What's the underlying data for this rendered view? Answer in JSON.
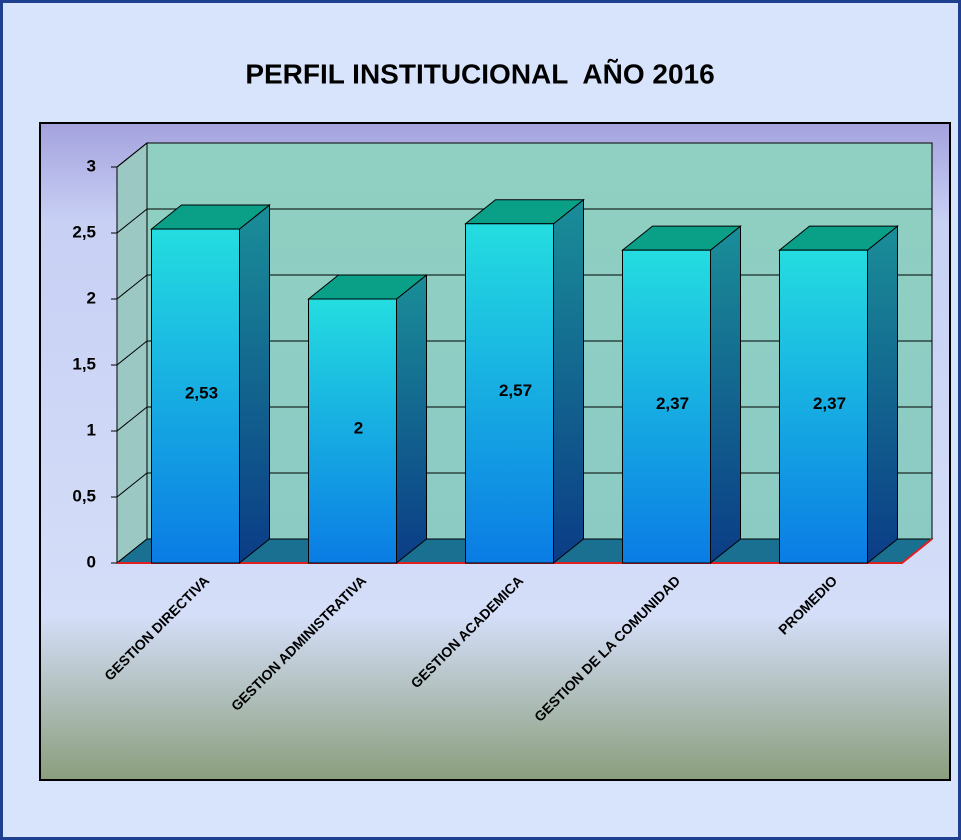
{
  "chart_data": {
    "type": "bar3d",
    "title": "PERFIL INSTITUCIONAL  AÑO 2016",
    "categories": [
      "GESTION DIRECTIVA",
      "GESTION ADMINISTRATIVA",
      "GESTION ACADEMICA",
      "GESTION DE LA COMUNIDAD",
      "PROMEDIO"
    ],
    "values": [
      2.53,
      2,
      2.57,
      2.37,
      2.37
    ],
    "value_labels": [
      "2,53",
      "2",
      "2,57",
      "2,37",
      "2,37"
    ],
    "ylim": [
      0,
      3
    ],
    "yticks": [
      0,
      {
        "value": 0.5,
        "label": "0,5"
      },
      1,
      {
        "value": 1.5,
        "label": "1,5"
      },
      2,
      {
        "value": 2.5,
        "label": "2,5"
      },
      3
    ],
    "grid": true
  }
}
